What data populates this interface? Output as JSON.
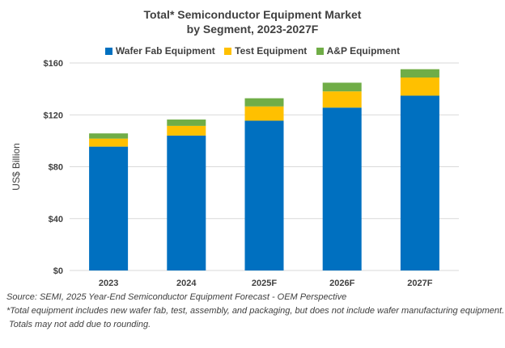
{
  "chart_data": {
    "type": "bar",
    "stacked": true,
    "title": "Total* Semiconductor Equipment Market",
    "subtitle": "by Segment, 2023-2027F",
    "ylabel": "US$ Billion",
    "xlabel": "",
    "ylim": [
      0,
      160
    ],
    "yticks": [
      "$0",
      "$40",
      "$80",
      "$120",
      "$160"
    ],
    "ytick_values": [
      0,
      40,
      80,
      120,
      160
    ],
    "grid": true,
    "legend_position": "top",
    "categories": [
      "2023",
      "2024",
      "2025F",
      "2026F",
      "2027F"
    ],
    "series": [
      {
        "name": "Wafer Fab Equipment",
        "color": "#0070C0",
        "values": [
          95.5,
          104.0,
          115.5,
          125.6,
          134.8
        ]
      },
      {
        "name": "Test Equipment",
        "color": "#FFC000",
        "values": [
          6.2,
          7.5,
          11.0,
          12.5,
          14.0
        ]
      },
      {
        "name": "A&P Equipment",
        "color": "#70AD47",
        "values": [
          4.0,
          4.9,
          6.3,
          6.7,
          6.4
        ]
      }
    ]
  },
  "notes": {
    "source": "Source: SEMI, 2025 Year-End Semiconductor Equipment Forecast - OEM Perspective",
    "footnote1": "*Total equipment includes new wafer fab, test, assembly, and packaging, but does not include wafer manufacturing equipment.",
    "footnote2": " Totals may not add due to rounding."
  }
}
